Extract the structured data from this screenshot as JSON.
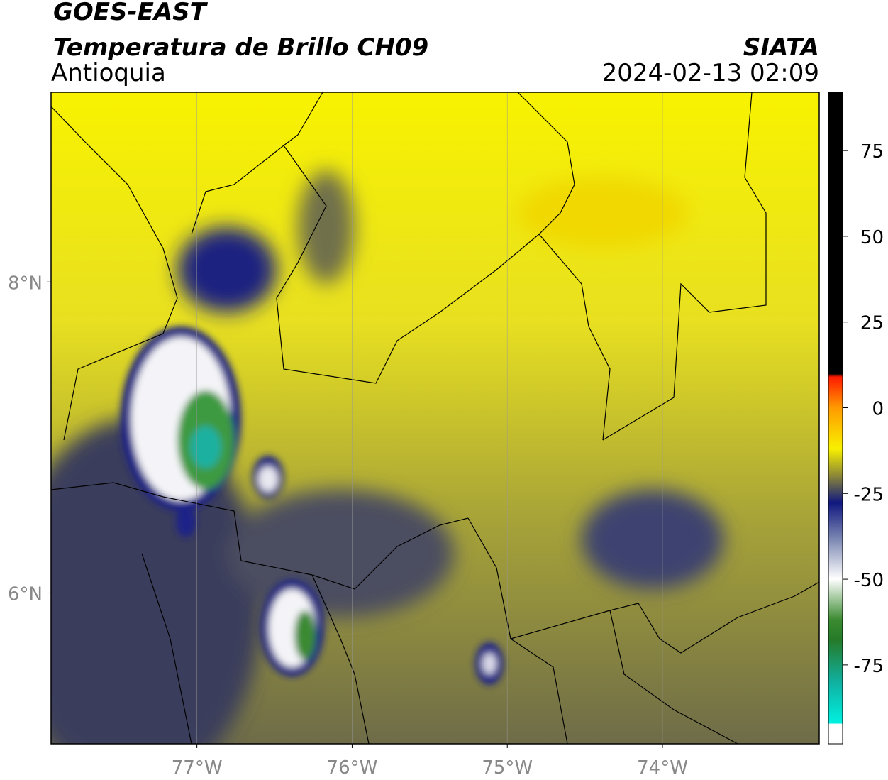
{
  "header": {
    "satellite": "GOES-EAST",
    "product": "Temperatura de Brillo CH09",
    "region": "Antioquia",
    "source": "SIATA",
    "datetime": "2024-02-13 02:09"
  },
  "map": {
    "xlim": [
      -77.94,
      -72.99
    ],
    "ylim": [
      5.03,
      9.22
    ],
    "xticks": [
      {
        "value": -77,
        "label": "77°W"
      },
      {
        "value": -76,
        "label": "76°W"
      },
      {
        "value": -75,
        "label": "75°W"
      },
      {
        "value": -74,
        "label": "74°W"
      }
    ],
    "yticks": [
      {
        "value": 6,
        "label": "6°N"
      },
      {
        "value": 8,
        "label": "8°N"
      }
    ],
    "grid": true
  },
  "colorbar": {
    "lim": [
      -98,
      92
    ],
    "ticks": [
      75,
      50,
      25,
      0,
      -25,
      -50,
      -75
    ]
  }
}
